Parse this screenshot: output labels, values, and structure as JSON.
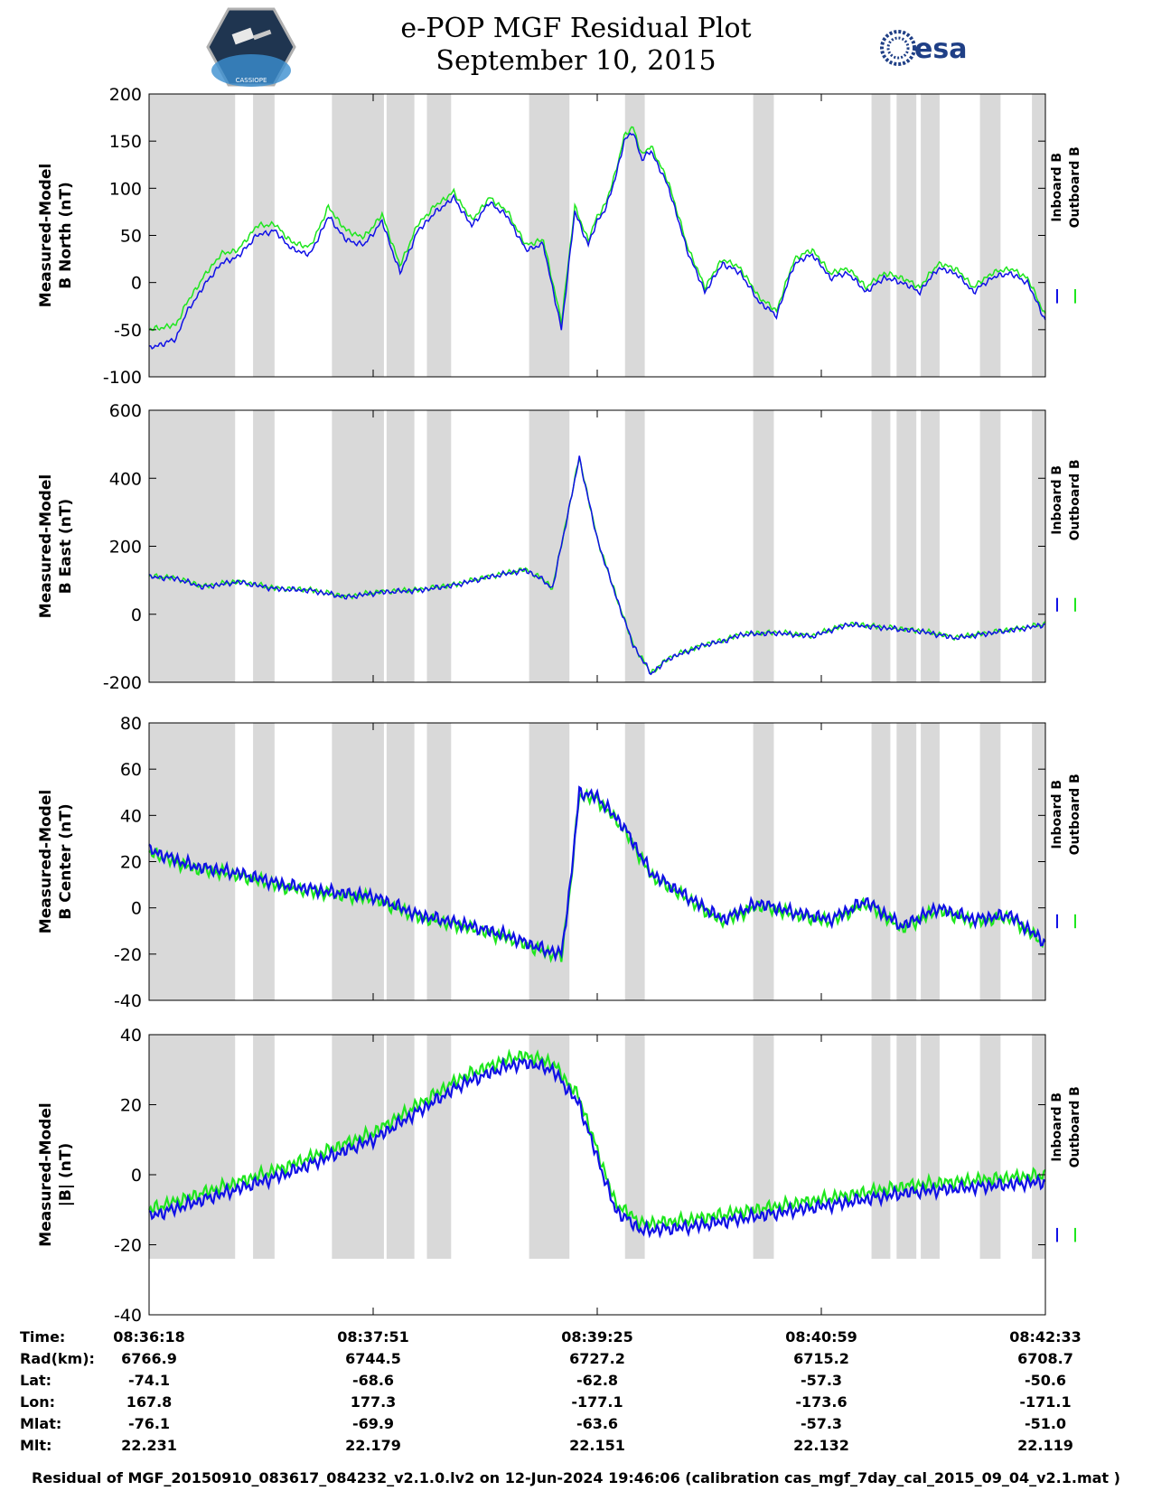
{
  "header": {
    "title": "e-POP MGF Residual Plot",
    "date": "September 10, 2015",
    "mission_logo_text": "CASSIOPE",
    "esa_logo_text": "esa"
  },
  "colors": {
    "inboard": "#1010e6",
    "outboard": "#1ee61e",
    "shade": "#d9d9d9"
  },
  "chart_data": [
    {
      "type": "line",
      "ylabel": [
        "Measured-Model",
        "B North (nT)"
      ],
      "ylim": [
        -100,
        200
      ],
      "yticks": [
        200,
        150,
        100,
        50,
        0,
        -50,
        -100
      ],
      "legend": [
        "Inboard B",
        "Outboard B"
      ],
      "series": [
        {
          "name": "Inboard B",
          "color": "#1010e6",
          "x": [
            0,
            0.03,
            0.04,
            0.06,
            0.08,
            0.1,
            0.12,
            0.14,
            0.16,
            0.18,
            0.2,
            0.22,
            0.24,
            0.26,
            0.28,
            0.3,
            0.32,
            0.34,
            0.36,
            0.38,
            0.4,
            0.42,
            0.44,
            0.46,
            0.475,
            0.49,
            0.5,
            0.51,
            0.52,
            0.53,
            0.54,
            0.55,
            0.56,
            0.58,
            0.6,
            0.62,
            0.64,
            0.66,
            0.68,
            0.7,
            0.72,
            0.74,
            0.76,
            0.78,
            0.8,
            0.82,
            0.84,
            0.86,
            0.88,
            0.9,
            0.92,
            0.94,
            0.96,
            0.98,
            1.0
          ],
          "values": [
            -70,
            -60,
            -35,
            -5,
            20,
            28,
            50,
            55,
            35,
            30,
            70,
            45,
            40,
            65,
            10,
            55,
            75,
            90,
            60,
            85,
            70,
            35,
            40,
            -50,
            75,
            40,
            65,
            80,
            110,
            150,
            160,
            130,
            140,
            100,
            35,
            -10,
            20,
            10,
            -20,
            -35,
            20,
            30,
            5,
            10,
            -10,
            5,
            0,
            -10,
            15,
            10,
            -10,
            5,
            10,
            0,
            -40
          ]
        },
        {
          "name": "Outboard B",
          "color": "#1ee61e",
          "x": [
            0,
            0.03,
            0.04,
            0.06,
            0.08,
            0.1,
            0.12,
            0.14,
            0.16,
            0.18,
            0.2,
            0.22,
            0.24,
            0.26,
            0.28,
            0.3,
            0.32,
            0.34,
            0.36,
            0.38,
            0.4,
            0.42,
            0.44,
            0.46,
            0.475,
            0.49,
            0.5,
            0.51,
            0.52,
            0.53,
            0.54,
            0.55,
            0.56,
            0.58,
            0.6,
            0.62,
            0.64,
            0.66,
            0.68,
            0.7,
            0.72,
            0.74,
            0.76,
            0.78,
            0.8,
            0.82,
            0.84,
            0.86,
            0.88,
            0.9,
            0.92,
            0.94,
            0.96,
            0.98,
            1.0
          ],
          "values": [
            -50,
            -45,
            -25,
            5,
            30,
            35,
            60,
            62,
            42,
            38,
            80,
            55,
            48,
            72,
            18,
            62,
            82,
            96,
            66,
            90,
            75,
            40,
            45,
            -42,
            80,
            45,
            70,
            85,
            115,
            155,
            165,
            135,
            145,
            105,
            40,
            -5,
            25,
            15,
            -15,
            -30,
            25,
            35,
            10,
            15,
            -5,
            10,
            5,
            -5,
            20,
            15,
            -5,
            10,
            15,
            5,
            -35
          ]
        }
      ]
    },
    {
      "type": "line",
      "ylabel": [
        "Measured-Model",
        "B East (nT)"
      ],
      "ylim": [
        -200,
        600
      ],
      "yticks": [
        600,
        400,
        200,
        0,
        -200
      ],
      "legend": [
        "Inboard B",
        "Outboard B"
      ],
      "series": [
        {
          "name": "Inboard B",
          "color": "#1010e6",
          "x": [
            0,
            0.03,
            0.06,
            0.1,
            0.14,
            0.18,
            0.22,
            0.26,
            0.3,
            0.34,
            0.38,
            0.42,
            0.44,
            0.45,
            0.47,
            0.48,
            0.5,
            0.52,
            0.54,
            0.56,
            0.58,
            0.6,
            0.62,
            0.64,
            0.66,
            0.7,
            0.74,
            0.78,
            0.82,
            0.86,
            0.9,
            0.94,
            0.98,
            1.0
          ],
          "values": [
            110,
            105,
            80,
            95,
            75,
            70,
            50,
            65,
            70,
            85,
            110,
            130,
            100,
            75,
            330,
            460,
            220,
            60,
            -90,
            -175,
            -130,
            -110,
            -90,
            -80,
            -60,
            -55,
            -65,
            -30,
            -40,
            -50,
            -70,
            -55,
            -40,
            -30
          ]
        },
        {
          "name": "Outboard B",
          "color": "#1ee61e",
          "x": [
            0,
            0.03,
            0.06,
            0.1,
            0.14,
            0.18,
            0.22,
            0.26,
            0.3,
            0.34,
            0.38,
            0.42,
            0.44,
            0.45,
            0.47,
            0.48,
            0.5,
            0.52,
            0.54,
            0.56,
            0.58,
            0.6,
            0.62,
            0.64,
            0.66,
            0.7,
            0.74,
            0.78,
            0.82,
            0.86,
            0.9,
            0.94,
            0.98,
            1.0
          ],
          "values": [
            112,
            107,
            82,
            97,
            77,
            72,
            52,
            67,
            72,
            87,
            112,
            132,
            102,
            77,
            332,
            462,
            222,
            62,
            -88,
            -173,
            -128,
            -108,
            -88,
            -78,
            -58,
            -53,
            -63,
            -28,
            -38,
            -48,
            -68,
            -53,
            -38,
            -28
          ]
        }
      ]
    },
    {
      "type": "line",
      "ylabel": [
        "Measured-Model",
        "B Center (nT)"
      ],
      "ylim": [
        -40,
        80
      ],
      "yticks": [
        80,
        60,
        40,
        20,
        0,
        -20,
        -40
      ],
      "legend": [
        "Inboard B",
        "Outboard B"
      ],
      "series": [
        {
          "name": "Inboard B",
          "color": "#1010e6",
          "x": [
            0,
            0.05,
            0.1,
            0.15,
            0.2,
            0.25,
            0.3,
            0.35,
            0.4,
            0.44,
            0.46,
            0.47,
            0.48,
            0.5,
            0.53,
            0.56,
            0.6,
            0.64,
            0.68,
            0.72,
            0.76,
            0.8,
            0.84,
            0.88,
            0.92,
            0.96,
            1.0
          ],
          "values": [
            25,
            18,
            15,
            10,
            7,
            5,
            -3,
            -7,
            -12,
            -18,
            -20,
            10,
            50,
            48,
            35,
            15,
            5,
            -5,
            2,
            -2,
            -5,
            3,
            -8,
            0,
            -5,
            -3,
            -15
          ]
        },
        {
          "name": "Outboard B",
          "color": "#1ee61e",
          "x": [
            0,
            0.05,
            0.1,
            0.15,
            0.2,
            0.25,
            0.3,
            0.35,
            0.4,
            0.44,
            0.46,
            0.47,
            0.48,
            0.5,
            0.53,
            0.56,
            0.6,
            0.64,
            0.68,
            0.72,
            0.76,
            0.8,
            0.84,
            0.88,
            0.92,
            0.96,
            1.0
          ],
          "values": [
            24,
            17,
            14,
            9,
            6,
            4,
            -4,
            -8,
            -13,
            -19,
            -21,
            9,
            49,
            47,
            34,
            14,
            4,
            -6,
            1,
            -3,
            -6,
            2,
            -9,
            -1,
            -6,
            -4,
            -16
          ]
        }
      ]
    },
    {
      "type": "line",
      "ylabel": [
        "Measured-Model",
        "|B| (nT)"
      ],
      "ylim": [
        -40,
        40
      ],
      "yticks": [
        40,
        20,
        0,
        -20,
        -40
      ],
      "legend": [
        "Inboard B",
        "Outboard B"
      ],
      "series": [
        {
          "name": "Inboard B",
          "color": "#1010e6",
          "x": [
            0,
            0.05,
            0.1,
            0.15,
            0.2,
            0.25,
            0.3,
            0.35,
            0.4,
            0.42,
            0.45,
            0.48,
            0.5,
            0.52,
            0.55,
            0.6,
            0.65,
            0.7,
            0.75,
            0.8,
            0.85,
            0.9,
            0.95,
            1.0
          ],
          "values": [
            -12,
            -8,
            -4,
            0,
            5,
            10,
            18,
            26,
            31,
            32,
            30,
            20,
            5,
            -10,
            -16,
            -15,
            -13,
            -11,
            -9,
            -7,
            -5,
            -4,
            -3,
            -2
          ]
        },
        {
          "name": "Outboard B",
          "color": "#1ee61e",
          "x": [
            0,
            0.05,
            0.1,
            0.15,
            0.2,
            0.25,
            0.3,
            0.35,
            0.4,
            0.42,
            0.45,
            0.48,
            0.5,
            0.52,
            0.55,
            0.6,
            0.65,
            0.7,
            0.75,
            0.8,
            0.85,
            0.9,
            0.95,
            1.0
          ],
          "values": [
            -10,
            -6,
            -2,
            2,
            7,
            12,
            20,
            28,
            33,
            34,
            32,
            22,
            7,
            -8,
            -14,
            -13,
            -11,
            -9,
            -7,
            -5,
            -3,
            -2,
            -1,
            0
          ]
        }
      ]
    }
  ],
  "shaded_intervals": [
    [
      0.0,
      0.096
    ],
    [
      0.116,
      0.14
    ],
    [
      0.204,
      0.262
    ],
    [
      0.265,
      0.296
    ],
    [
      0.31,
      0.337
    ],
    [
      0.424,
      0.469
    ],
    [
      0.531,
      0.553
    ],
    [
      0.674,
      0.697
    ],
    [
      0.806,
      0.827
    ],
    [
      0.834,
      0.856
    ],
    [
      0.861,
      0.882
    ],
    [
      0.927,
      0.95
    ],
    [
      0.985,
      1.0
    ]
  ],
  "ephemeris": {
    "labels": [
      "Time:",
      "Rad(km):",
      "Lat:",
      "Lon:",
      "Mlat:",
      "Mlt:"
    ],
    "columns": [
      [
        "08:36:18",
        "6766.9",
        "-74.1",
        "167.8",
        "-76.1",
        "22.231"
      ],
      [
        "08:37:51",
        "6744.5",
        "-68.6",
        "177.3",
        "-69.9",
        "22.179"
      ],
      [
        "08:39:25",
        "6727.2",
        "-62.8",
        "-177.1",
        "-63.6",
        "22.151"
      ],
      [
        "08:40:59",
        "6715.2",
        "-57.3",
        "-173.6",
        "-57.3",
        "22.132"
      ],
      [
        "08:42:33",
        "6708.7",
        "-50.6",
        "-171.1",
        "-51.0",
        "22.119"
      ]
    ]
  },
  "footer": "Residual of MGF_20150910_083617_084232_v2.1.0.lv2 on 12-Jun-2024 19:46:06 (calibration cas_mgf_7day_cal_2015_09_04_v2.1.mat )"
}
